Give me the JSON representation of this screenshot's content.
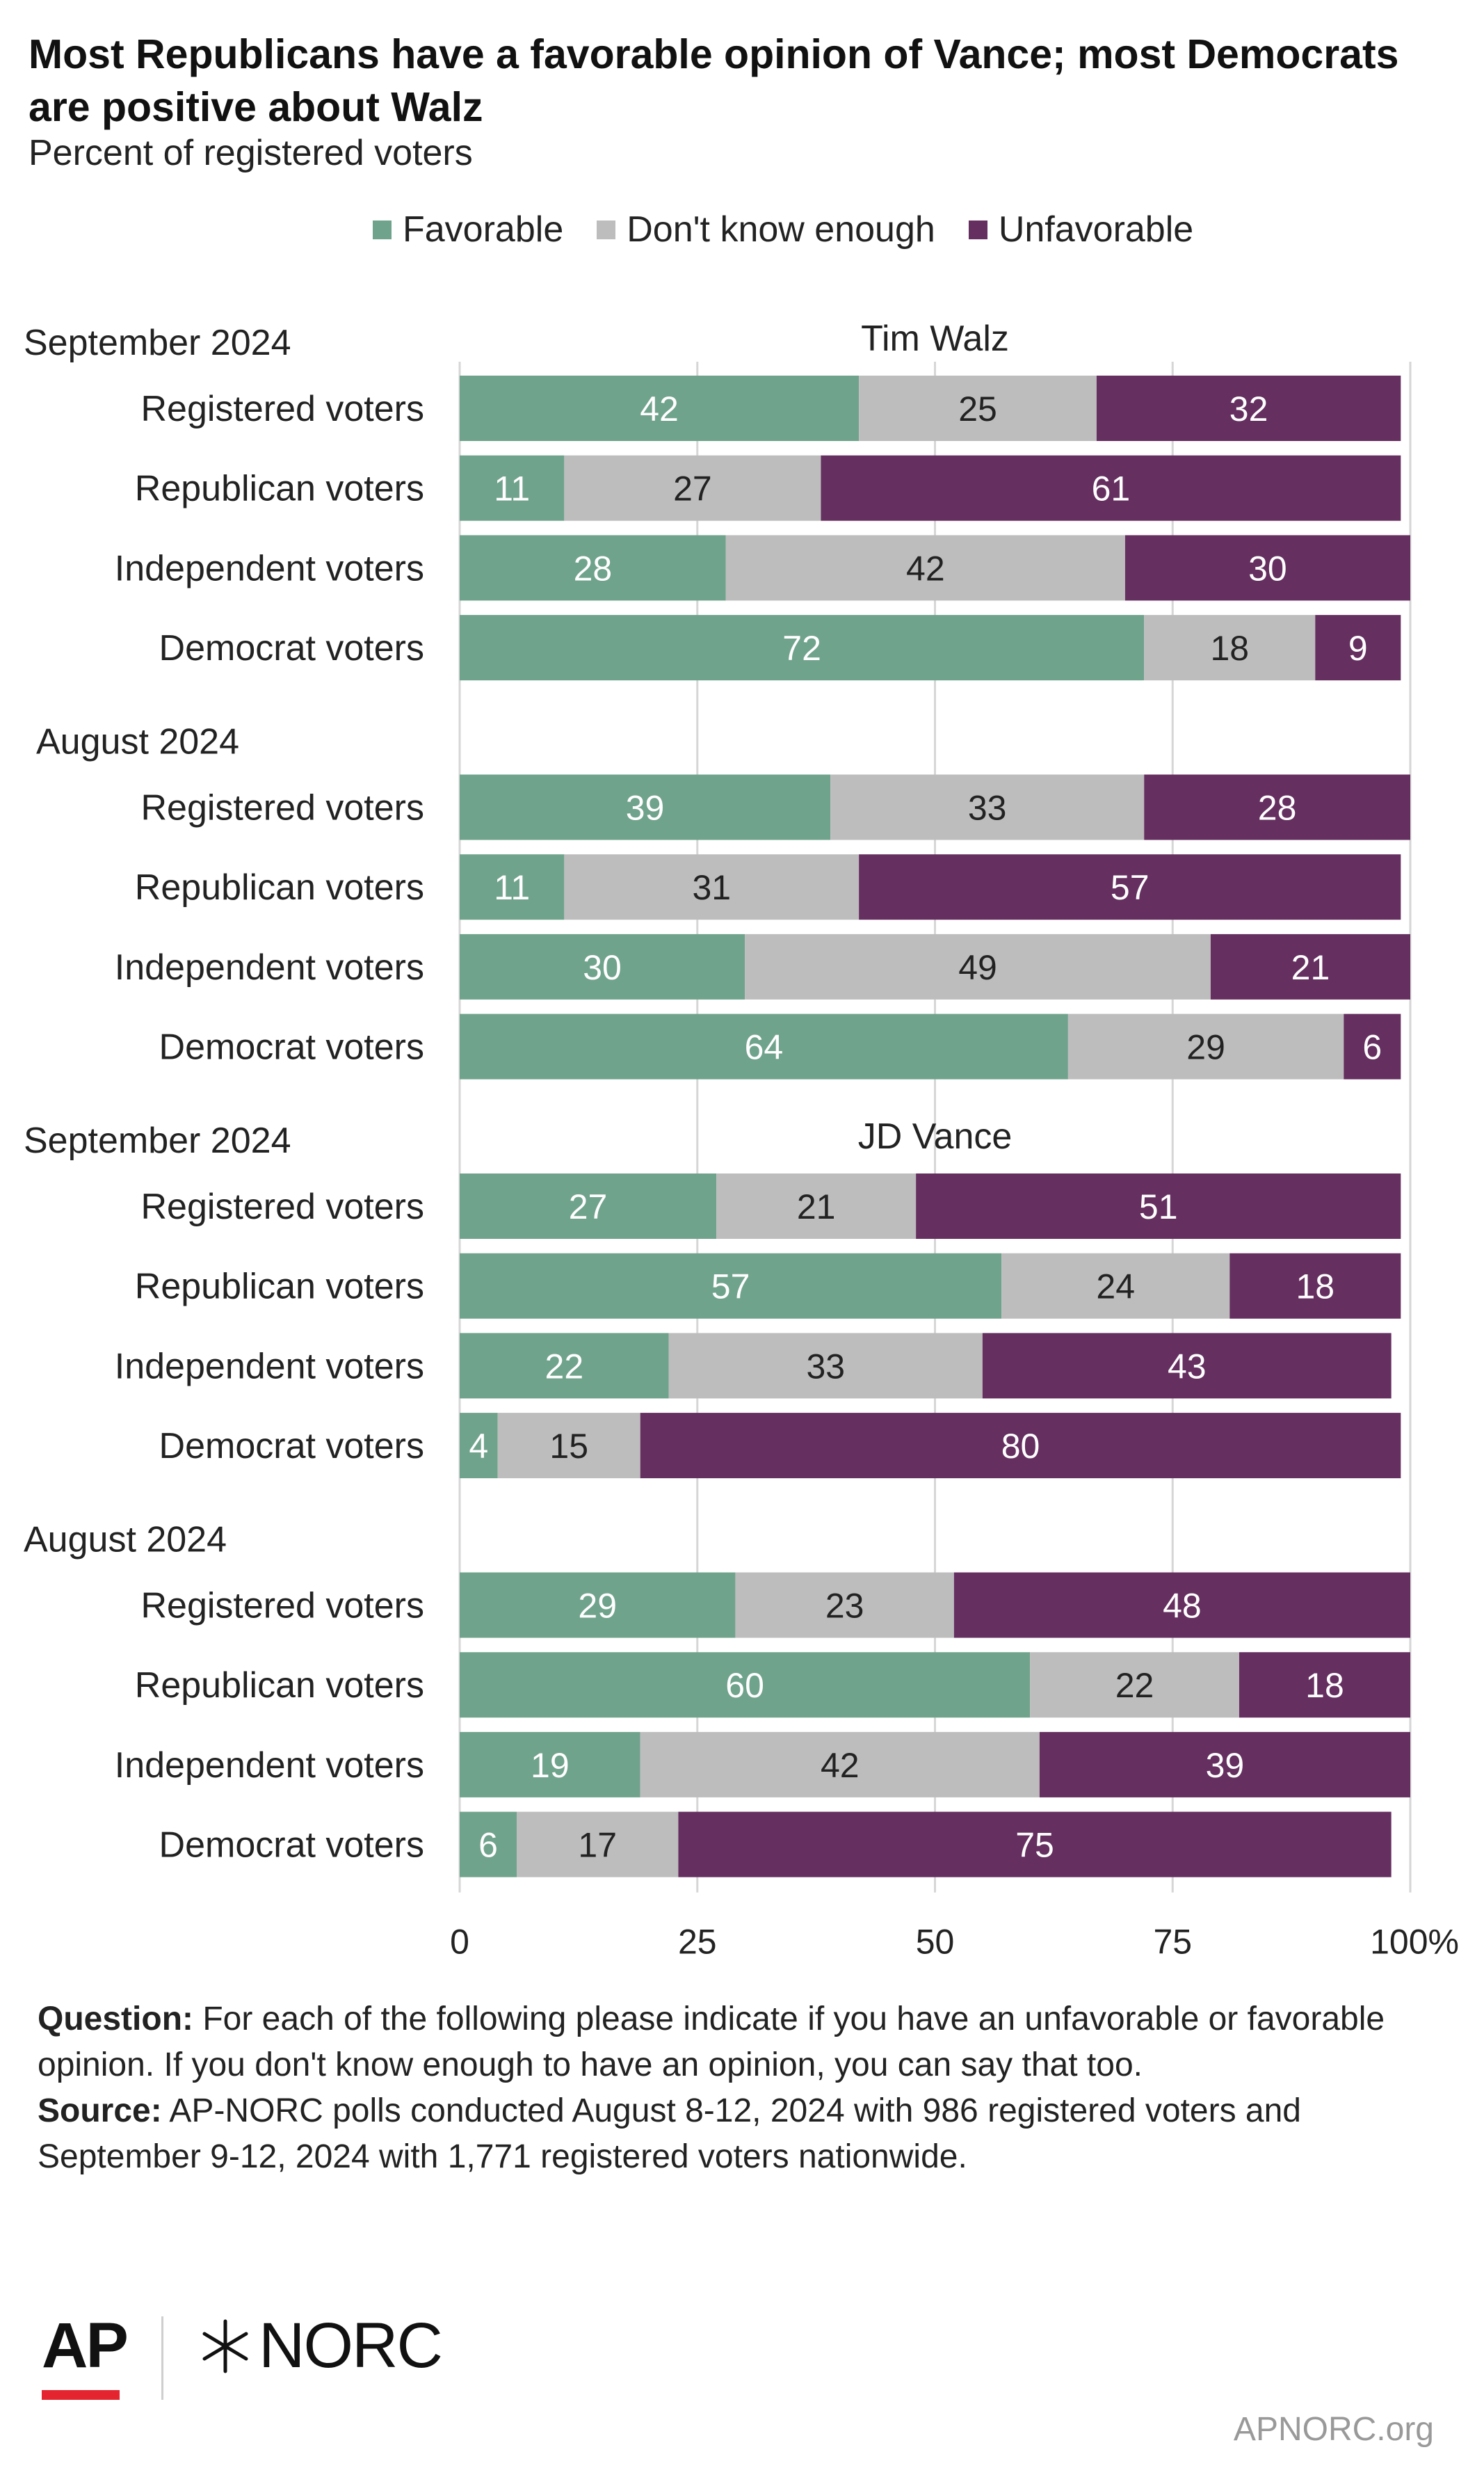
{
  "title": "Most Republicans have a favorable opinion of Vance; most Democrats are positive about Walz",
  "subtitle": "Percent of registered voters",
  "colors": {
    "favorable": "#70a38c",
    "dont_know": "#bdbdbd",
    "unfavorable": "#652f60",
    "grid": "#d6d6d6"
  },
  "legend": [
    {
      "label": "Favorable",
      "color": "#70a38c"
    },
    {
      "label": "Don't know enough",
      "color": "#bdbdbd"
    },
    {
      "label": "Unfavorable",
      "color": "#652f60"
    }
  ],
  "chart_data": {
    "type": "bar",
    "orientation": "horizontal",
    "stacked": true,
    "xlim": [
      0,
      100
    ],
    "x_ticks": [
      "0",
      "25",
      "50",
      "75",
      "100%"
    ],
    "grid": true,
    "legend_position": "top",
    "series_names": [
      "Favorable",
      "Don't know enough",
      "Unfavorable"
    ],
    "panels": [
      {
        "candidate": "Tim Walz",
        "groups": [
          {
            "period": "September 2024",
            "rows": [
              {
                "label": "Registered voters",
                "values": [
                  42,
                  25,
                  32
                ]
              },
              {
                "label": "Republican voters",
                "values": [
                  11,
                  27,
                  61
                ]
              },
              {
                "label": "Independent voters",
                "values": [
                  28,
                  42,
                  30
                ]
              },
              {
                "label": "Democrat voters",
                "values": [
                  72,
                  18,
                  9
                ]
              }
            ]
          },
          {
            "period": "August 2024",
            "rows": [
              {
                "label": "Registered voters",
                "values": [
                  39,
                  33,
                  28
                ]
              },
              {
                "label": "Republican voters",
                "values": [
                  11,
                  31,
                  57
                ]
              },
              {
                "label": "Independent voters",
                "values": [
                  30,
                  49,
                  21
                ]
              },
              {
                "label": "Democrat voters",
                "values": [
                  64,
                  29,
                  6
                ]
              }
            ]
          }
        ]
      },
      {
        "candidate": "JD Vance",
        "groups": [
          {
            "period": "September 2024",
            "rows": [
              {
                "label": "Registered voters",
                "values": [
                  27,
                  21,
                  51
                ]
              },
              {
                "label": "Republican voters",
                "values": [
                  57,
                  24,
                  18
                ]
              },
              {
                "label": "Independent voters",
                "values": [
                  22,
                  33,
                  43
                ]
              },
              {
                "label": "Democrat voters",
                "values": [
                  4,
                  15,
                  80
                ]
              }
            ]
          },
          {
            "period": "August 2024",
            "rows": [
              {
                "label": "Registered voters",
                "values": [
                  29,
                  23,
                  48
                ]
              },
              {
                "label": "Republican voters",
                "values": [
                  60,
                  22,
                  18
                ]
              },
              {
                "label": "Independent voters",
                "values": [
                  19,
                  42,
                  39
                ]
              },
              {
                "label": "Democrat voters",
                "values": [
                  6,
                  17,
                  75
                ]
              }
            ]
          }
        ]
      }
    ]
  },
  "notes": {
    "question_label": "Question:",
    "question_text": "For each of the following please indicate if you have an unfavorable or favorable opinion. If you don't know enough to have an opinion, you can say that too.",
    "source_label": "Source:",
    "source_text": "AP-NORC polls conducted August 8-12, 2024 with 986 registered voters and September 9-12, 2024 with 1,771 registered voters nationwide."
  },
  "logos": {
    "ap": "AP",
    "norc": "NORC",
    "norc_mark_icon": "asterisk-star-icon"
  },
  "footer_url": "APNORC.org"
}
